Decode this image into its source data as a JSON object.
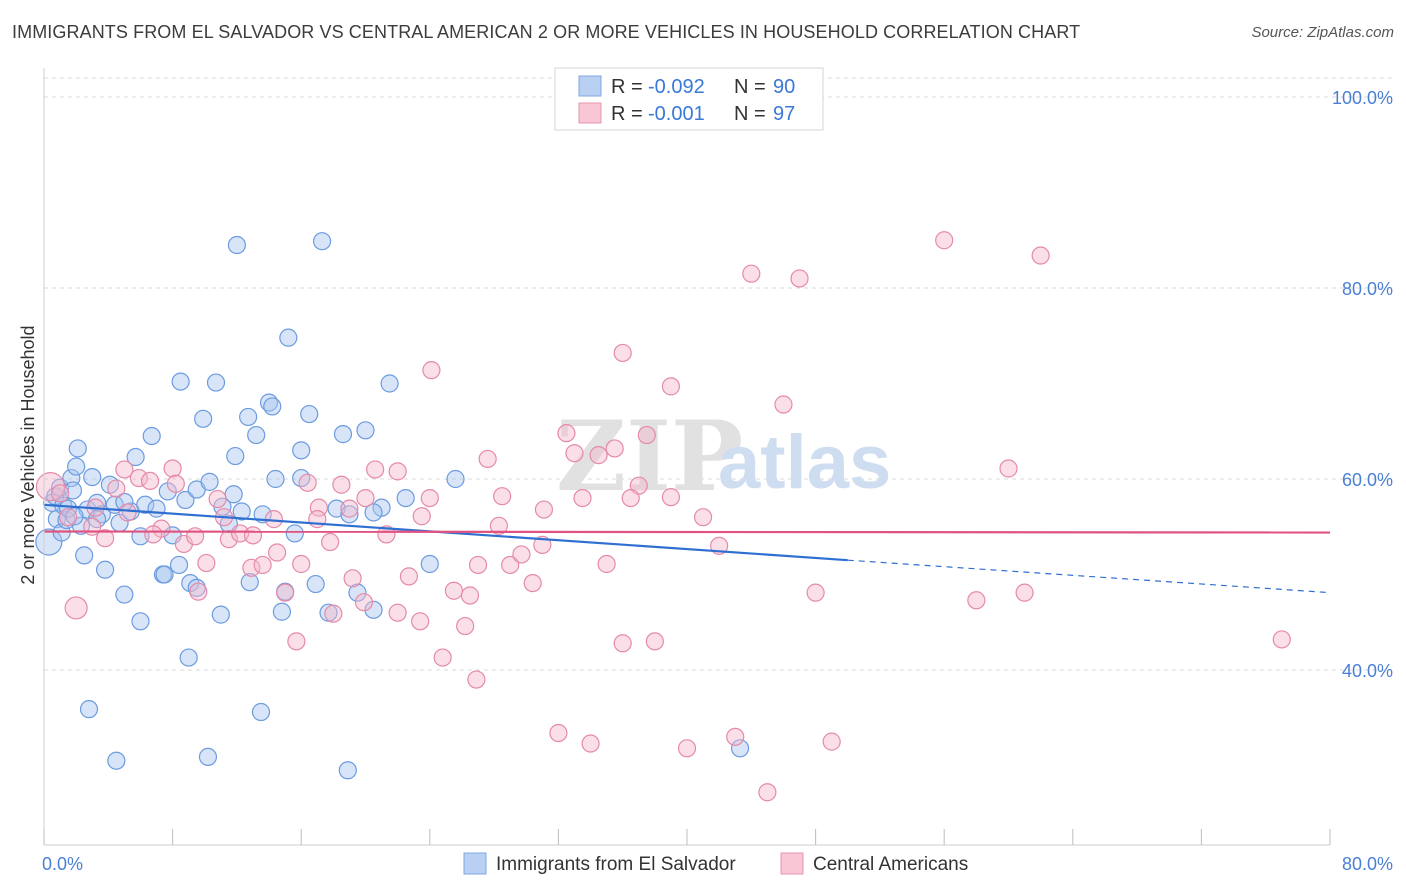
{
  "header": {
    "title": "IMMIGRANTS FROM EL SALVADOR VS CENTRAL AMERICAN 2 OR MORE VEHICLES IN HOUSEHOLD CORRELATION CHART",
    "source": "Source: ZipAtlas.com"
  },
  "watermark": {
    "zip": "ZIP",
    "atlas": "atlas"
  },
  "colors": {
    "blue_fill": "#a9c6ef",
    "blue_stroke": "#6c9be0",
    "blue_line": "#2f6fd1",
    "pink_fill": "#f5b8cb",
    "pink_stroke": "#e58aa8",
    "pink_line": "#e0527f",
    "grid": "#d8d8d8",
    "axis_label": "#4a7fd4"
  },
  "legend": {
    "rows": [
      {
        "r_label": "R =",
        "r_value": "-0.092",
        "n_label": "N =",
        "n_value": "90"
      },
      {
        "r_label": "R =",
        "r_value": "-0.001",
        "n_label": "N =",
        "n_value": "97"
      }
    ]
  },
  "chart_data": {
    "type": "scatter",
    "ylabel": "2 or more Vehicles in Household",
    "x_tick_labels": {
      "left": "0.0%",
      "right": "80.0%"
    },
    "y_tick_labels": [
      "100.0%",
      "80.0%",
      "60.0%",
      "40.0%"
    ],
    "xlim": [
      0,
      80
    ],
    "ylim": [
      20,
      102
    ],
    "y_ticks": [
      100,
      80,
      60,
      40
    ],
    "grid": true,
    "legend_position": "top-center",
    "series": [
      {
        "name": "Immigrants from El Salvador",
        "color": "#6c9be0",
        "trend": {
          "x0": 0,
          "y0": 57.3,
          "x1": 50,
          "y1": 51.5,
          "dashed_to_x": 80,
          "dashed_to_y": 48.1
        },
        "points": [
          [
            0.3,
            53.4
          ],
          [
            0.5,
            57.5
          ],
          [
            0.7,
            58.2
          ],
          [
            0.8,
            55.8
          ],
          [
            1.0,
            59.1
          ],
          [
            1.1,
            54.4
          ],
          [
            1.2,
            57.2
          ],
          [
            1.4,
            55.7
          ],
          [
            1.5,
            56.9
          ],
          [
            1.7,
            60.1
          ],
          [
            1.8,
            58.8
          ],
          [
            2.0,
            61.3
          ],
          [
            2.1,
            63.2
          ],
          [
            2.3,
            55.1
          ],
          [
            2.5,
            52.0
          ],
          [
            2.7,
            56.8
          ],
          [
            3.0,
            60.2
          ],
          [
            3.3,
            57.5
          ],
          [
            3.6,
            56.3
          ],
          [
            3.8,
            50.5
          ],
          [
            4.1,
            59.4
          ],
          [
            4.4,
            57.3
          ],
          [
            4.7,
            55.4
          ],
          [
            5.0,
            47.9
          ],
          [
            5.4,
            56.6
          ],
          [
            5.7,
            62.3
          ],
          [
            6.0,
            54.0
          ],
          [
            6.3,
            57.3
          ],
          [
            6.7,
            64.5
          ],
          [
            7.0,
            56.9
          ],
          [
            7.4,
            50.0
          ],
          [
            7.7,
            58.7
          ],
          [
            8.0,
            54.1
          ],
          [
            8.4,
            51.0
          ],
          [
            8.8,
            57.8
          ],
          [
            9.1,
            49.1
          ],
          [
            9.5,
            58.9
          ],
          [
            9.9,
            66.3
          ],
          [
            10.3,
            59.7
          ],
          [
            10.7,
            70.1
          ],
          [
            11.1,
            57.1
          ],
          [
            11.5,
            55.3
          ],
          [
            11.9,
            62.4
          ],
          [
            12.3,
            56.6
          ],
          [
            12.8,
            49.2
          ],
          [
            13.2,
            64.6
          ],
          [
            13.6,
            56.3
          ],
          [
            14.0,
            68.0
          ],
          [
            14.4,
            60.0
          ],
          [
            14.8,
            46.1
          ],
          [
            15.2,
            74.8
          ],
          [
            15.6,
            54.3
          ],
          [
            16.0,
            60.1
          ],
          [
            16.5,
            66.8
          ],
          [
            16.9,
            49.0
          ],
          [
            17.3,
            84.9
          ],
          [
            17.7,
            46.0
          ],
          [
            18.2,
            56.9
          ],
          [
            18.6,
            64.7
          ],
          [
            19.0,
            56.3
          ],
          [
            19.5,
            48.1
          ],
          [
            20.0,
            65.1
          ],
          [
            20.5,
            46.3
          ],
          [
            21.0,
            57.0
          ],
          [
            21.5,
            70.0
          ],
          [
            22.5,
            58.0
          ],
          [
            24.0,
            51.1
          ],
          [
            25.6,
            60.0
          ],
          [
            2.8,
            35.9
          ],
          [
            4.5,
            30.5
          ],
          [
            9.0,
            41.3
          ],
          [
            10.2,
            30.9
          ],
          [
            13.5,
            35.6
          ],
          [
            18.9,
            29.5
          ],
          [
            12.0,
            84.5
          ],
          [
            8.5,
            70.2
          ],
          [
            6.0,
            45.1
          ],
          [
            11.0,
            45.8
          ],
          [
            15.0,
            48.2
          ],
          [
            14.2,
            67.6
          ],
          [
            9.5,
            48.6
          ],
          [
            7.5,
            50.0
          ],
          [
            5.0,
            57.6
          ],
          [
            3.3,
            55.8
          ],
          [
            1.9,
            56.1
          ],
          [
            16.0,
            63.0
          ],
          [
            20.5,
            56.5
          ],
          [
            12.7,
            66.5
          ],
          [
            11.8,
            58.4
          ],
          [
            43.3,
            31.8
          ]
        ]
      },
      {
        "name": "Central Americans",
        "color": "#e58aa8",
        "trend": {
          "x0": 0,
          "y0": 54.5,
          "x1": 80,
          "y1": 54.4
        },
        "points": [
          [
            0.4,
            59.2
          ],
          [
            1.5,
            56.0
          ],
          [
            2.0,
            46.5
          ],
          [
            3.2,
            57.0
          ],
          [
            3.8,
            53.8
          ],
          [
            4.5,
            59.0
          ],
          [
            5.2,
            56.5
          ],
          [
            5.9,
            60.1
          ],
          [
            6.6,
            59.8
          ],
          [
            7.3,
            54.8
          ],
          [
            8.0,
            61.1
          ],
          [
            8.7,
            53.2
          ],
          [
            9.4,
            54.0
          ],
          [
            10.1,
            51.2
          ],
          [
            10.8,
            57.9
          ],
          [
            11.5,
            53.7
          ],
          [
            12.2,
            54.3
          ],
          [
            12.9,
            50.7
          ],
          [
            13.6,
            51.0
          ],
          [
            14.3,
            55.8
          ],
          [
            15.0,
            48.1
          ],
          [
            15.7,
            43.0
          ],
          [
            16.4,
            59.6
          ],
          [
            17.1,
            57.0
          ],
          [
            17.8,
            53.4
          ],
          [
            18.5,
            59.4
          ],
          [
            19.2,
            49.6
          ],
          [
            19.9,
            47.1
          ],
          [
            20.6,
            61.0
          ],
          [
            21.3,
            54.2
          ],
          [
            22.0,
            46.0
          ],
          [
            22.7,
            49.8
          ],
          [
            23.4,
            45.1
          ],
          [
            24.1,
            71.4
          ],
          [
            24.8,
            41.3
          ],
          [
            25.5,
            48.3
          ],
          [
            26.2,
            44.6
          ],
          [
            26.9,
            39.0
          ],
          [
            27.6,
            62.1
          ],
          [
            28.3,
            55.1
          ],
          [
            29.0,
            51.0
          ],
          [
            29.7,
            52.1
          ],
          [
            30.4,
            49.1
          ],
          [
            31.1,
            56.8
          ],
          [
            32.0,
            33.4
          ],
          [
            33.0,
            62.7
          ],
          [
            34.0,
            32.3
          ],
          [
            35.0,
            51.1
          ],
          [
            36.0,
            42.8
          ],
          [
            37.0,
            59.3
          ],
          [
            38.0,
            43.0
          ],
          [
            39.0,
            69.7
          ],
          [
            40.0,
            31.8
          ],
          [
            41.0,
            56.0
          ],
          [
            42.0,
            53.0
          ],
          [
            43.0,
            33.0
          ],
          [
            44.0,
            81.5
          ],
          [
            45.0,
            27.2
          ],
          [
            46.0,
            67.8
          ],
          [
            47.0,
            81.0
          ],
          [
            48.0,
            48.1
          ],
          [
            49.0,
            32.5
          ],
          [
            56.0,
            85.0
          ],
          [
            58.0,
            47.3
          ],
          [
            60.0,
            61.1
          ],
          [
            61.0,
            48.1
          ],
          [
            62.0,
            83.4
          ],
          [
            77.0,
            43.2
          ],
          [
            36.0,
            73.2
          ],
          [
            32.5,
            64.8
          ],
          [
            34.5,
            62.5
          ],
          [
            36.5,
            58.0
          ],
          [
            37.5,
            64.6
          ],
          [
            39.0,
            58.1
          ],
          [
            28.5,
            58.2
          ],
          [
            31.0,
            53.1
          ],
          [
            33.5,
            58.0
          ],
          [
            35.5,
            63.2
          ],
          [
            24.0,
            58.0
          ],
          [
            27.0,
            51.0
          ],
          [
            26.5,
            47.8
          ],
          [
            22.0,
            60.8
          ],
          [
            23.5,
            56.1
          ],
          [
            20.0,
            58.0
          ],
          [
            19.0,
            56.9
          ],
          [
            18.0,
            45.9
          ],
          [
            17.0,
            55.8
          ],
          [
            16.0,
            51.1
          ],
          [
            14.5,
            52.3
          ],
          [
            13.0,
            54.1
          ],
          [
            11.2,
            56.0
          ],
          [
            9.6,
            48.2
          ],
          [
            8.2,
            59.5
          ],
          [
            6.8,
            54.2
          ],
          [
            5.0,
            61.0
          ],
          [
            3.0,
            55.0
          ],
          [
            1.0,
            58.5
          ]
        ]
      }
    ]
  },
  "bottom_legend": [
    {
      "label": "Immigrants from El Salvador"
    },
    {
      "label": "Central Americans"
    }
  ]
}
